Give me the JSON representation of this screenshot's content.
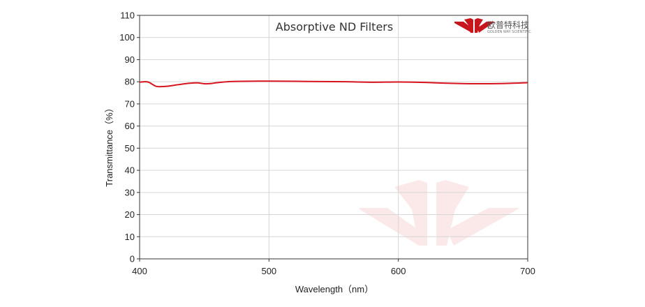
{
  "chart_data": {
    "type": "line",
    "title": "Absorptive ND Filters",
    "xlabel": "Wavelength（nm）",
    "ylabel": "Transmittance（%）",
    "xlim": [
      400,
      700
    ],
    "ylim": [
      0,
      110
    ],
    "xticks": [
      400,
      500,
      600,
      700
    ],
    "yticks": [
      0,
      10,
      20,
      30,
      40,
      50,
      60,
      70,
      80,
      90,
      100,
      110
    ],
    "grid": true,
    "series": [
      {
        "color": "#d7141e",
        "x": [
          400,
          404,
          407,
          410,
          413,
          417,
          422,
          430,
          438,
          445,
          450,
          455,
          460,
          470,
          480,
          500,
          520,
          540,
          560,
          580,
          600,
          620,
          640,
          660,
          680,
          700
        ],
        "y": [
          79.8,
          80.0,
          79.8,
          78.8,
          77.9,
          77.8,
          78.0,
          78.7,
          79.3,
          79.5,
          79.1,
          79.2,
          79.6,
          80.1,
          80.2,
          80.3,
          80.2,
          80.1,
          80.0,
          79.8,
          79.9,
          79.7,
          79.3,
          79.1,
          79.2,
          79.6
        ]
      }
    ]
  },
  "logo": {
    "name_cn": "欧普特科技",
    "name_en": "GOLDEN WAY SCIENTIFIC",
    "color": "#c8161d"
  }
}
